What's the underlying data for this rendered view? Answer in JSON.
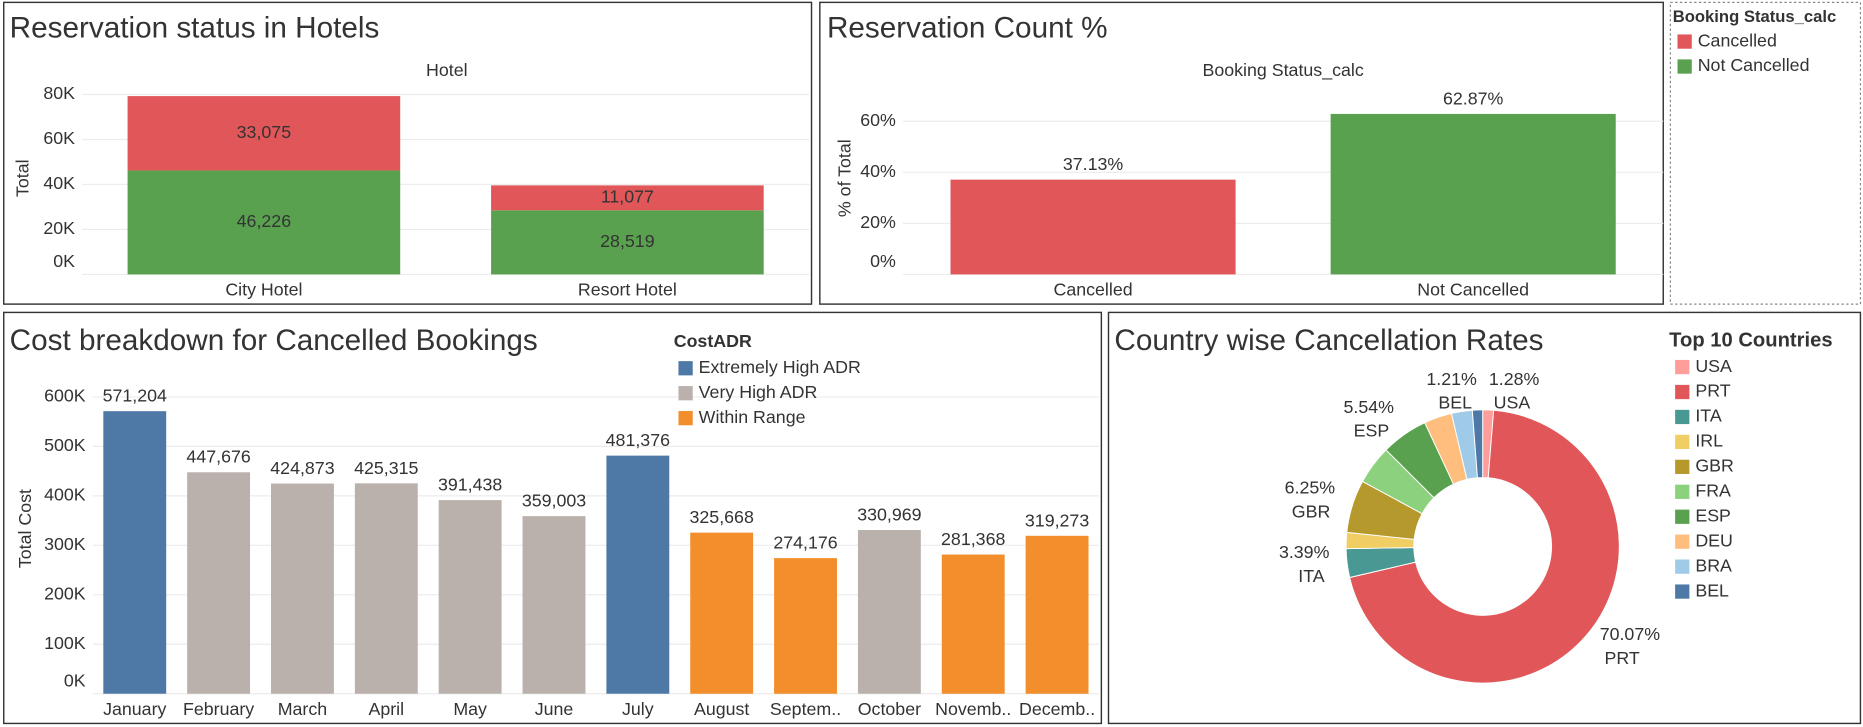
{
  "chart_data": [
    {
      "type": "stacked_bar",
      "title": "Reservation status in Hotels",
      "header": "Hotel",
      "y_label": "Total",
      "categories": [
        "City Hotel",
        "Resort Hotel"
      ],
      "series": [
        {
          "name": "Cancelled",
          "color": "#e15759",
          "values": [
            33075,
            11077
          ],
          "value_labels": [
            "33,075",
            "11,077"
          ]
        },
        {
          "name": "Not Cancelled",
          "color": "#59a14f",
          "values": [
            46226,
            28519
          ],
          "value_labels": [
            "46,226",
            "28,519"
          ]
        }
      ],
      "label_position": "inside",
      "ylim": [
        0,
        84000
      ],
      "yticks": [
        {
          "value": 0,
          "label": "0K"
        },
        {
          "value": 20000,
          "label": "20K"
        },
        {
          "value": 40000,
          "label": "40K"
        },
        {
          "value": 60000,
          "label": "60K"
        },
        {
          "value": 80000,
          "label": "80K"
        }
      ],
      "grid": true,
      "legend_title": "Booking Status_calc"
    },
    {
      "type": "bar",
      "title": "Reservation Count %",
      "header": "Booking Status_calc",
      "y_label": "% of Total",
      "categories": [
        "Cancelled",
        "Not Cancelled"
      ],
      "values": [
        37.13,
        62.87
      ],
      "value_labels": [
        "37.13%",
        "62.87%"
      ],
      "colors": [
        "#e15759",
        "#59a14f"
      ],
      "ylim": [
        0,
        74
      ],
      "yticks": [
        {
          "value": 0,
          "label": "0%"
        },
        {
          "value": 20,
          "label": "20%"
        },
        {
          "value": 40,
          "label": "40%"
        },
        {
          "value": 60,
          "label": "60%"
        }
      ],
      "grid": true
    },
    {
      "type": "stacked_bar",
      "title": "Cost breakdown for Cancelled Bookings",
      "y_label": "Total Cost",
      "categories": [
        "January",
        "February",
        "March",
        "April",
        "May",
        "June",
        "July",
        "August",
        "Septem..",
        "October",
        "Novemb..",
        "Decemb.."
      ],
      "series": [
        {
          "name": "Extremely High ADR",
          "color": "#4e79a7",
          "values": [
            571204,
            null,
            null,
            null,
            null,
            null,
            481376,
            null,
            null,
            null,
            null,
            null
          ],
          "value_labels": [
            "571,204",
            null,
            null,
            null,
            null,
            null,
            "481,376",
            null,
            null,
            null,
            null,
            null
          ]
        },
        {
          "name": "Very High ADR",
          "color": "#bab0ac",
          "values": [
            null,
            447676,
            424873,
            425315,
            391438,
            359003,
            null,
            null,
            null,
            330969,
            null,
            null
          ],
          "value_labels": [
            null,
            "447,676",
            "424,873",
            "425,315",
            "391,438",
            "359,003",
            null,
            null,
            null,
            "330,969",
            null,
            null
          ]
        },
        {
          "name": "Within Range",
          "color": "#f28e2b",
          "values": [
            null,
            null,
            null,
            null,
            null,
            null,
            null,
            325668,
            274176,
            null,
            281368,
            319273
          ],
          "value_labels": [
            null,
            null,
            null,
            null,
            null,
            null,
            null,
            "325,668",
            "274,176",
            null,
            "281,368",
            "319,273"
          ]
        }
      ],
      "label_position": "outside",
      "ylim": [
        0,
        670000
      ],
      "yticks": [
        {
          "value": 0,
          "label": "0K"
        },
        {
          "value": 100000,
          "label": "100K"
        },
        {
          "value": 200000,
          "label": "200K"
        },
        {
          "value": 300000,
          "label": "300K"
        },
        {
          "value": 400000,
          "label": "400K"
        },
        {
          "value": 500000,
          "label": "500K"
        },
        {
          "value": 600000,
          "label": "600K"
        }
      ],
      "grid": true,
      "legend_title": "CostADR"
    },
    {
      "type": "donut",
      "title": "Country wise Cancellation Rates",
      "legend_title": "Top 10 Countries",
      "categories": [
        "USA",
        "PRT",
        "ITA",
        "IRL",
        "GBR",
        "FRA",
        "ESP",
        "DEU",
        "BRA",
        "BEL"
      ],
      "values": [
        1.28,
        70.07,
        3.39,
        1.9,
        6.25,
        4.6,
        5.54,
        3.3,
        2.46,
        1.21
      ],
      "value_labels": [
        "1.28%",
        "70.07%",
        "3.39%",
        null,
        "6.25%",
        null,
        "5.54%",
        null,
        null,
        "1.21%"
      ],
      "colors": [
        "#ff9d9a",
        "#e15759",
        "#499894",
        "#f1ce63",
        "#b6992d",
        "#8cd17d",
        "#59a14f",
        "#ffbe7d",
        "#a0cbe8",
        "#4e79a7"
      ]
    }
  ]
}
